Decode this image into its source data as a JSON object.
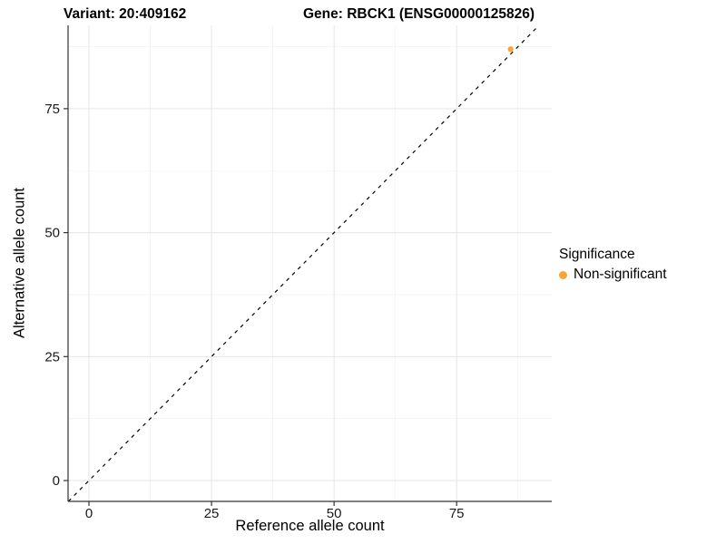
{
  "header": {
    "variant_title": "Variant: 20:409162",
    "gene_title": "Gene: RBCK1 (ENSG00000125826)"
  },
  "chart_data": {
    "type": "scatter",
    "title": "",
    "xlabel": "Reference allele count",
    "ylabel": "Alternative allele count",
    "x_ticks": [
      0,
      25,
      50,
      75
    ],
    "y_ticks": [
      0,
      25,
      50,
      75
    ],
    "xlim": [
      -4.26,
      94.4
    ],
    "ylim": [
      -4.2,
      91.8
    ],
    "grid": "major+minor on white background",
    "reference_line": {
      "kind": "identity y=x",
      "style": "dashed",
      "color": "#000000"
    },
    "points": [
      {
        "x": 86,
        "y": 87,
        "series": "Non-significant",
        "color": "#F8A632"
      }
    ],
    "legend": {
      "title": "Significance",
      "position": "right",
      "items": [
        {
          "label": "Non-significant",
          "color": "#F8A632"
        }
      ]
    }
  },
  "colors": {
    "axis_line": "#333333",
    "grid_major": "#e5e5e5",
    "grid_minor": "#f2f2f2",
    "tick_text": "#1a1a1a",
    "point_orange": "#F8A632"
  }
}
